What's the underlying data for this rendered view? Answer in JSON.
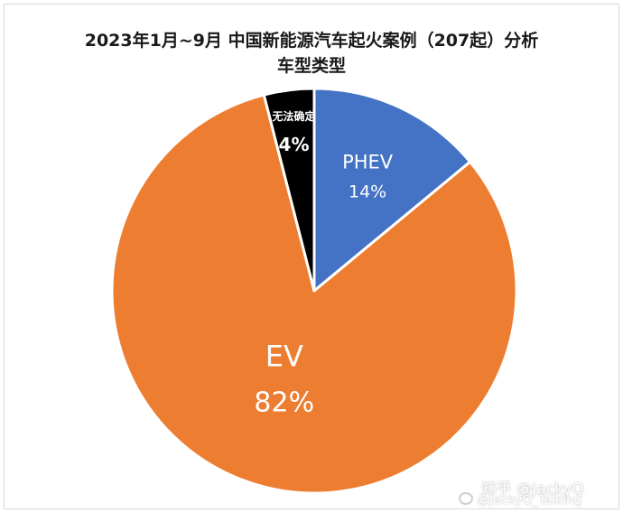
{
  "chart_data": {
    "type": "pie",
    "title": "2023年1月~9月  中国新能源汽车起火案例（207起）分析",
    "subtitle": "车型类型",
    "slices": [
      {
        "label": "PHEV",
        "value": 14,
        "value_label": "14%",
        "color": "#4472C4"
      },
      {
        "label": "EV",
        "value": 82,
        "value_label": "82%",
        "color": "#ED7D31"
      },
      {
        "label": "无法确定",
        "value": 4,
        "value_label": "4%",
        "color": "#000000"
      }
    ],
    "start": "12 o'clock, clockwise",
    "legend": "none"
  },
  "watermark": {
    "line1": "知乎 @JackyQ",
    "line2": "@JackyQ_Talking"
  }
}
